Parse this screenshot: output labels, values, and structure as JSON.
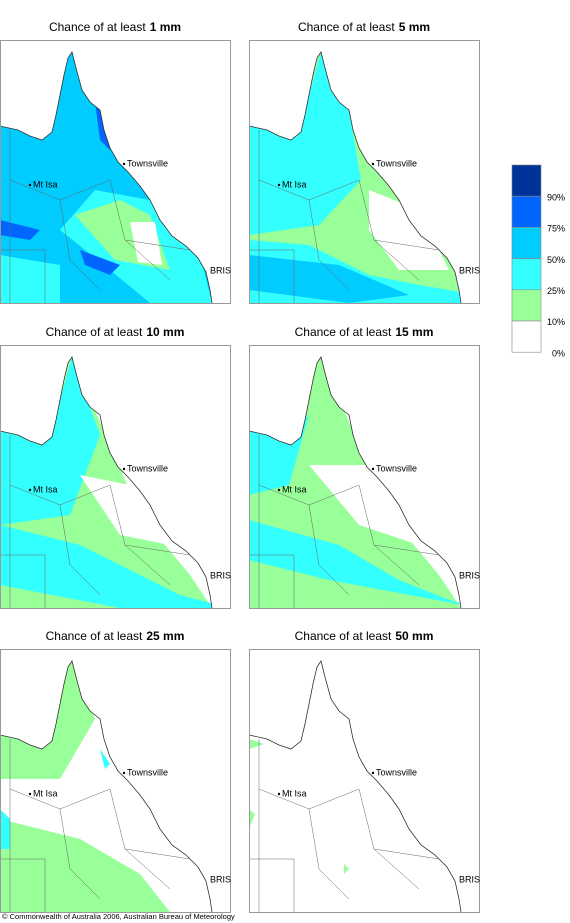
{
  "panels": [
    {
      "title_prefix": "Chance of at least",
      "title_amount": "1 mm"
    },
    {
      "title_prefix": "Chance of at least",
      "title_amount": "5 mm"
    },
    {
      "title_prefix": "Chance of at least",
      "title_amount": "10 mm"
    },
    {
      "title_prefix": "Chance of at least",
      "title_amount": "15 mm"
    },
    {
      "title_prefix": "Chance of at least",
      "title_amount": "25 mm"
    },
    {
      "title_prefix": "Chance of at least",
      "title_amount": "50 mm"
    }
  ],
  "places": {
    "townsville": "Townsville",
    "mt_isa": "Mt Isa",
    "bris": "BRIS"
  },
  "legend": {
    "items": [
      {
        "label": "90%",
        "color": "#003399"
      },
      {
        "label": "75%",
        "color": "#0066ff"
      },
      {
        "label": "50%",
        "color": "#00ccff"
      },
      {
        "label": "25%",
        "color": "#33ffff"
      },
      {
        "label": "10%",
        "color": "#99ff99"
      },
      {
        "label": "0%",
        "color": "#ffffff"
      }
    ]
  },
  "copyright": "© Commonwealth of Australia 2006, Australian Bureau of Meteorology"
}
